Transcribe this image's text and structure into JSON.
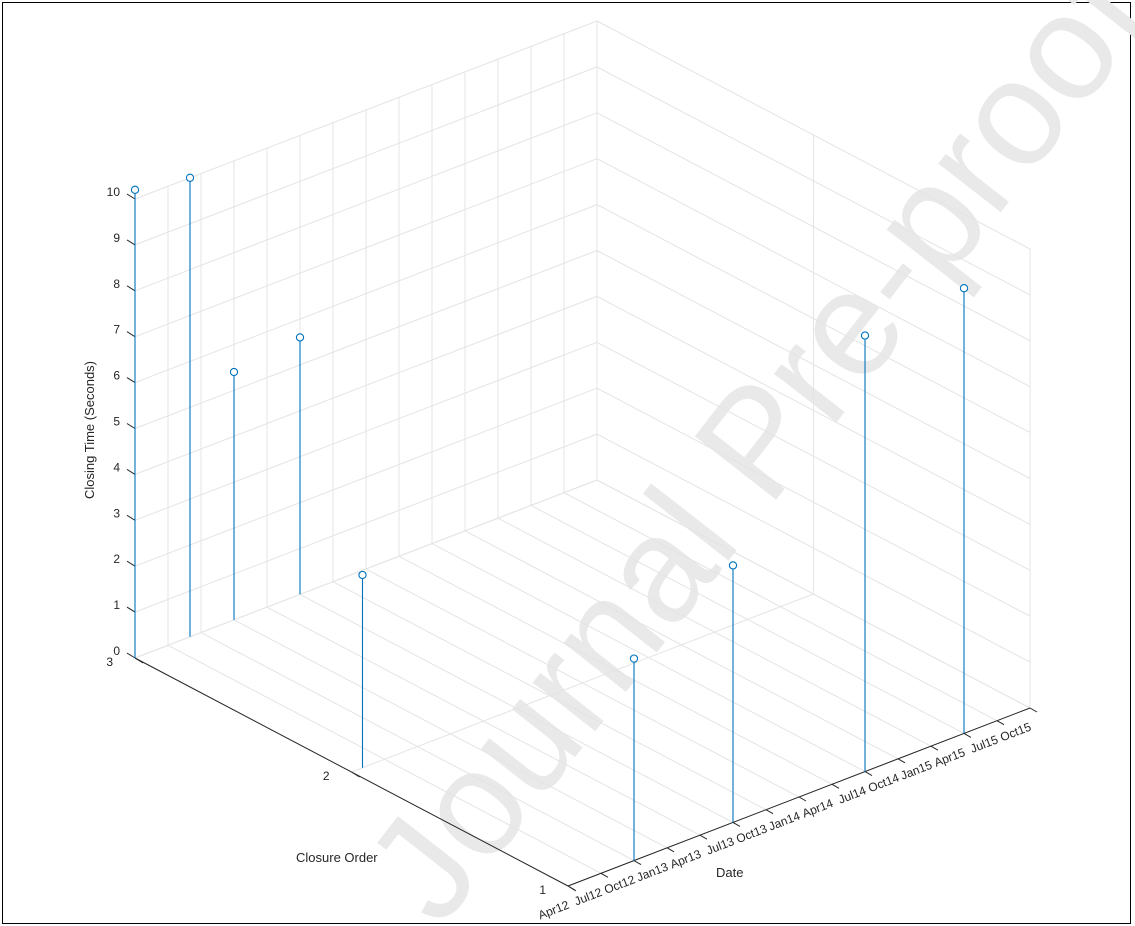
{
  "chart_data": {
    "type": "stem3",
    "title": "",
    "xlabel": "Date",
    "ylabel": "Closure Order",
    "zlabel": "Closing Time (Seconds)",
    "x_ticks": [
      "Apr12",
      "Jul12",
      "Oct12",
      "Jan13",
      "Apr13",
      "Jul13",
      "Oct13",
      "Jan14",
      "Apr14",
      "Jul14",
      "Oct14",
      "Jan15",
      "Apr15",
      "Jul15",
      "Oct15"
    ],
    "y_ticks": [
      "1",
      "2",
      "3"
    ],
    "z_ticks": [
      "0",
      "1",
      "2",
      "3",
      "4",
      "5",
      "6",
      "7",
      "8",
      "9",
      "10"
    ],
    "xlim": [
      "Apr12",
      "Oct15"
    ],
    "ylim": [
      1,
      3
    ],
    "zlim": [
      0,
      10
    ],
    "grid": true,
    "color": "#0072BD",
    "watermark": "Journal Pre-proof",
    "points": [
      {
        "date": "Apr12",
        "order": 3,
        "value": 10.2
      },
      {
        "date": "May12",
        "order": 2,
        "value": 4.2
      },
      {
        "date": "Sep12",
        "order": 3,
        "value": 10.0
      },
      {
        "date": "Oct12",
        "order": 1,
        "value": 4.4
      },
      {
        "date": "Jan13",
        "order": 3,
        "value": 5.4
      },
      {
        "date": "Jul13",
        "order": 1,
        "value": 5.6
      },
      {
        "date": "Jul13",
        "order": 3,
        "value": 5.6
      },
      {
        "date": "Jul14",
        "order": 1,
        "value": 9.5
      },
      {
        "date": "Apr15",
        "order": 1,
        "value": 9.7
      }
    ]
  }
}
